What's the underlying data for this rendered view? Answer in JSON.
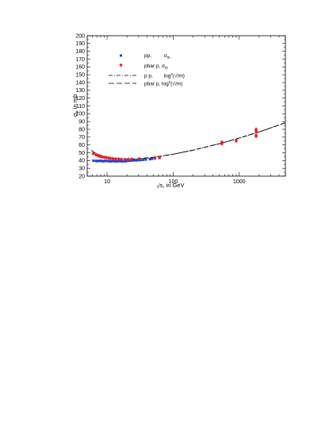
{
  "chart_data": {
    "type": "scatter",
    "xscale": "log",
    "xlim": [
      5,
      5000
    ],
    "ylim": [
      20,
      200
    ],
    "x_tick_labels": [
      {
        "value": 10,
        "label": "10"
      },
      {
        "value": 100,
        "label": "100"
      },
      {
        "value": 1000,
        "label": "1000"
      }
    ],
    "y_ticks": [
      20,
      30,
      40,
      50,
      60,
      70,
      80,
      90,
      100,
      110,
      120,
      130,
      140,
      150,
      160,
      170,
      180,
      190,
      200
    ],
    "xlabel": {
      "prefix": "√",
      "text": "s, in GeV"
    },
    "ylabel": {
      "main": "σ",
      "sub": "t",
      "rest": ", in mb"
    },
    "legend": {
      "placement": "top-left",
      "entries": [
        {
          "kind": "marker",
          "color": "#1f3fd6",
          "name": "pp,",
          "sym": "σ",
          "sub": "th"
        },
        {
          "kind": "marker",
          "color": "#e0232a",
          "name": "pbar p, σ",
          "sub": "th"
        },
        {
          "kind": "dashdot",
          "name": "p p,",
          "formula": "log",
          "sup": "2",
          "tail": "(√/m)"
        },
        {
          "kind": "dashed",
          "name": "pbar p, log",
          "sup": "2",
          "tail": "(√/m)"
        }
      ]
    },
    "series": [
      {
        "name": "pp",
        "kind": "points",
        "color": "#1f3fd6",
        "points": [
          [
            6.2,
            39.8
          ],
          [
            6.8,
            39.6
          ],
          [
            7.1,
            39.2
          ],
          [
            7.5,
            39.5
          ],
          [
            7.9,
            39.8
          ],
          [
            8.3,
            39.3
          ],
          [
            8.8,
            39.0
          ],
          [
            9.2,
            39.6
          ],
          [
            9.8,
            39.4
          ],
          [
            10.5,
            39.2
          ],
          [
            11.2,
            38.9
          ],
          [
            11.8,
            39.1
          ],
          [
            12.5,
            39.3
          ],
          [
            13.5,
            38.9
          ],
          [
            14.6,
            39.0
          ],
          [
            15.8,
            39.2
          ],
          [
            17.0,
            38.8
          ],
          [
            18.5,
            39.0
          ],
          [
            19.7,
            39.2
          ],
          [
            21.5,
            39.6
          ],
          [
            23.0,
            39.9
          ],
          [
            24.5,
            40.1
          ],
          [
            26.5,
            40.3
          ],
          [
            28.0,
            40.2
          ],
          [
            30.5,
            40.6
          ],
          [
            32.0,
            40.5
          ],
          [
            35.0,
            40.9
          ],
          [
            38.5,
            41.2
          ],
          [
            44.5,
            41.7
          ],
          [
            48.0,
            42.2
          ],
          [
            53.0,
            42.7
          ],
          [
            62.0,
            43.3
          ]
        ]
      },
      {
        "name": "pbar p",
        "kind": "points",
        "color": "#e0232a",
        "points": [
          [
            6.2,
            49.0
          ],
          [
            6.8,
            47.5
          ],
          [
            7.3,
            46.2
          ],
          [
            7.8,
            45.3
          ],
          [
            8.4,
            44.7
          ],
          [
            9.0,
            44.2
          ],
          [
            9.7,
            43.8
          ],
          [
            10.5,
            43.2
          ],
          [
            11.2,
            42.8
          ],
          [
            12.2,
            42.4
          ],
          [
            13.5,
            42.0
          ],
          [
            15.0,
            41.9
          ],
          [
            16.5,
            41.6
          ],
          [
            18.5,
            41.4
          ],
          [
            21.0,
            41.6
          ],
          [
            23.5,
            41.8
          ],
          [
            30.5,
            42.1
          ],
          [
            53.0,
            43.7
          ],
          [
            62.0,
            44.1
          ],
          [
            546,
            61.5
          ],
          [
            546,
            63.5
          ],
          [
            900,
            65.3
          ],
          [
            1800,
            72.5
          ],
          [
            1800,
            71.0
          ],
          [
            1800,
            77.5
          ],
          [
            1800,
            80.0
          ]
        ]
      },
      {
        "name": "p p, log²(√/m)",
        "kind": "line",
        "style": "dashdot",
        "color": "#000000",
        "points": [
          [
            6.5,
            38.6
          ],
          [
            8,
            38.8
          ],
          [
            10,
            39.0
          ],
          [
            13,
            39.4
          ],
          [
            20,
            40.5
          ],
          [
            30,
            41.8
          ],
          [
            50,
            43.8
          ],
          [
            100,
            48.0
          ],
          [
            200,
            53.3
          ],
          [
            500,
            61.5
          ],
          [
            1000,
            68.7
          ],
          [
            2000,
            76.7
          ],
          [
            3000,
            81.8
          ],
          [
            5000,
            88.5
          ]
        ]
      },
      {
        "name": "pbar p, log²(√/m)",
        "kind": "line",
        "style": "dashed",
        "color": "#000000",
        "points": [
          [
            5.8,
            53.0
          ],
          [
            6.5,
            50.0
          ],
          [
            7.5,
            47.4
          ],
          [
            8.5,
            45.9
          ],
          [
            10,
            44.4
          ],
          [
            12,
            43.2
          ],
          [
            15,
            42.4
          ],
          [
            20,
            42.0
          ],
          [
            30,
            42.5
          ],
          [
            50,
            44.2
          ],
          [
            100,
            48.0
          ],
          [
            200,
            53.3
          ],
          [
            500,
            61.5
          ],
          [
            1000,
            68.7
          ],
          [
            2000,
            76.7
          ],
          [
            3000,
            81.8
          ],
          [
            5000,
            88.5
          ]
        ]
      }
    ]
  }
}
